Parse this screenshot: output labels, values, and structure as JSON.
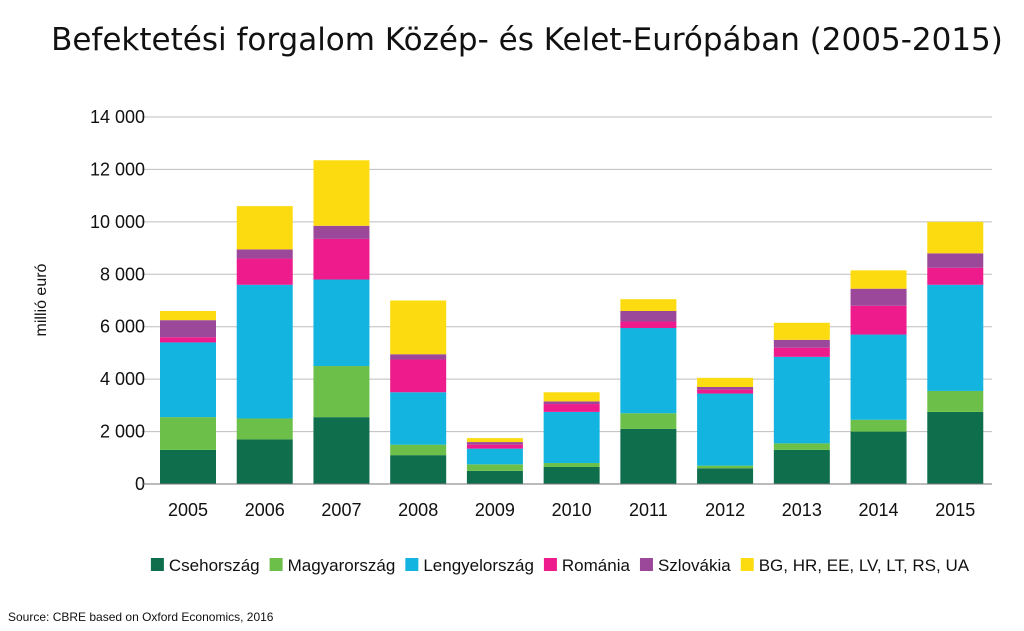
{
  "chart_data": {
    "type": "bar",
    "stacked": true,
    "title": "Befektetési forgalom Közép- és Kelet-Európában (2005-2015)",
    "ylabel": "millió euró",
    "xlabel": "",
    "ylim": [
      0,
      14000
    ],
    "yticks": [
      0,
      2000,
      4000,
      6000,
      8000,
      10000,
      12000,
      14000
    ],
    "ytick_labels": [
      "0",
      "2 000",
      "4 000",
      "6 000",
      "8 000",
      "10 000",
      "12 000",
      "14 000"
    ],
    "grid": true,
    "legend_position": "bottom",
    "categories": [
      "2005",
      "2006",
      "2007",
      "2008",
      "2009",
      "2010",
      "2011",
      "2012",
      "2013",
      "2014",
      "2015"
    ],
    "series": [
      {
        "name": "Csehország",
        "color": "#0f6e4c",
        "values": [
          1300,
          1700,
          2550,
          1100,
          500,
          650,
          2100,
          600,
          1300,
          2000,
          2750
        ]
      },
      {
        "name": "Magyarország",
        "color": "#6cc04a",
        "values": [
          1250,
          800,
          1950,
          400,
          250,
          150,
          600,
          100,
          250,
          450,
          800
        ]
      },
      {
        "name": "Lengyelország",
        "color": "#14b4e0",
        "values": [
          2850,
          5100,
          3300,
          2000,
          600,
          1950,
          3250,
          2750,
          3300,
          3250,
          4050
        ]
      },
      {
        "name": "Románia",
        "color": "#ee1b8c",
        "values": [
          200,
          1000,
          1550,
          1250,
          150,
          300,
          250,
          150,
          350,
          1100,
          650
        ]
      },
      {
        "name": "Szlovákia",
        "color": "#9b489b",
        "values": [
          650,
          350,
          500,
          200,
          100,
          100,
          400,
          100,
          300,
          650,
          550
        ]
      },
      {
        "name": "BG, HR, EE, LV, LT, RS, UA",
        "color": "#fcdc10",
        "values": [
          350,
          1650,
          2500,
          2050,
          150,
          350,
          450,
          350,
          650,
          700,
          1200
        ]
      }
    ],
    "source": "Source: CBRE based on Oxford Economics, 2016"
  }
}
